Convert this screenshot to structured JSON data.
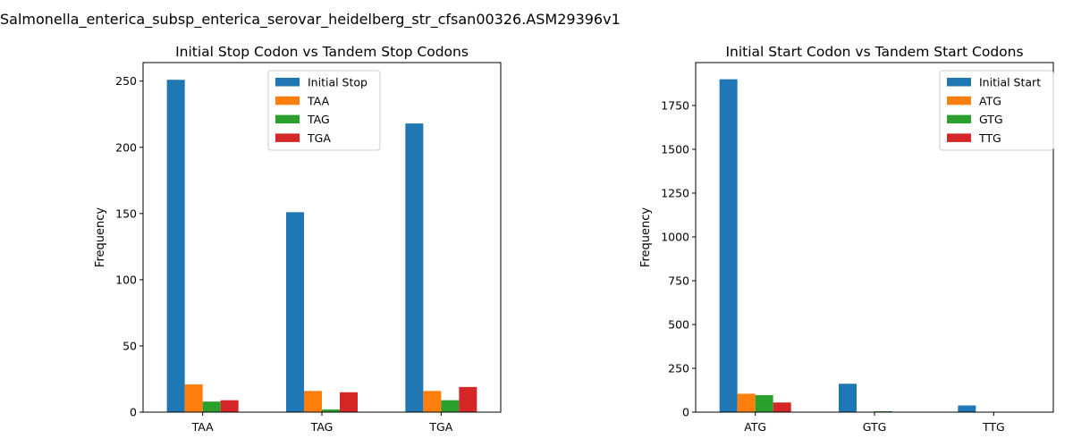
{
  "figure_title": "Salmonella_enterica_subsp_enterica_serovar_heidelberg_str_cfsan00326.ASM29396v1",
  "colors": {
    "c0": "#1f77b4",
    "c1": "#ff7f0e",
    "c2": "#2ca02c",
    "c3": "#d62728"
  },
  "chart_data": [
    {
      "type": "bar",
      "title": "Initial Stop Codon vs Tandem Stop Codons",
      "xlabel": "",
      "ylabel": "Frequency",
      "categories": [
        "TAA",
        "TAG",
        "TGA"
      ],
      "ylim": [
        0,
        264
      ],
      "yticks": [
        0,
        50,
        100,
        150,
        200,
        250
      ],
      "legend_position": "upper-center",
      "series": [
        {
          "name": "Initial Stop",
          "values": [
            251,
            151,
            218
          ]
        },
        {
          "name": "TAA",
          "values": [
            21,
            16,
            16
          ]
        },
        {
          "name": "TAG",
          "values": [
            8,
            2,
            9
          ]
        },
        {
          "name": "TGA",
          "values": [
            9,
            15,
            19
          ]
        }
      ]
    },
    {
      "type": "bar",
      "title": "Initial Start Codon vs Tandem Start Codons",
      "xlabel": "",
      "ylabel": "Frequency",
      "categories": [
        "ATG",
        "GTG",
        "TTG"
      ],
      "ylim": [
        0,
        1995
      ],
      "yticks": [
        0,
        250,
        500,
        750,
        1000,
        1250,
        1500,
        1750
      ],
      "legend_position": "upper-right",
      "series": [
        {
          "name": "Initial Start",
          "values": [
            1900,
            162,
            38
          ]
        },
        {
          "name": "ATG",
          "values": [
            105,
            0,
            0
          ]
        },
        {
          "name": "GTG",
          "values": [
            97,
            5,
            0
          ]
        },
        {
          "name": "TTG",
          "values": [
            55,
            0,
            0
          ]
        }
      ]
    }
  ]
}
